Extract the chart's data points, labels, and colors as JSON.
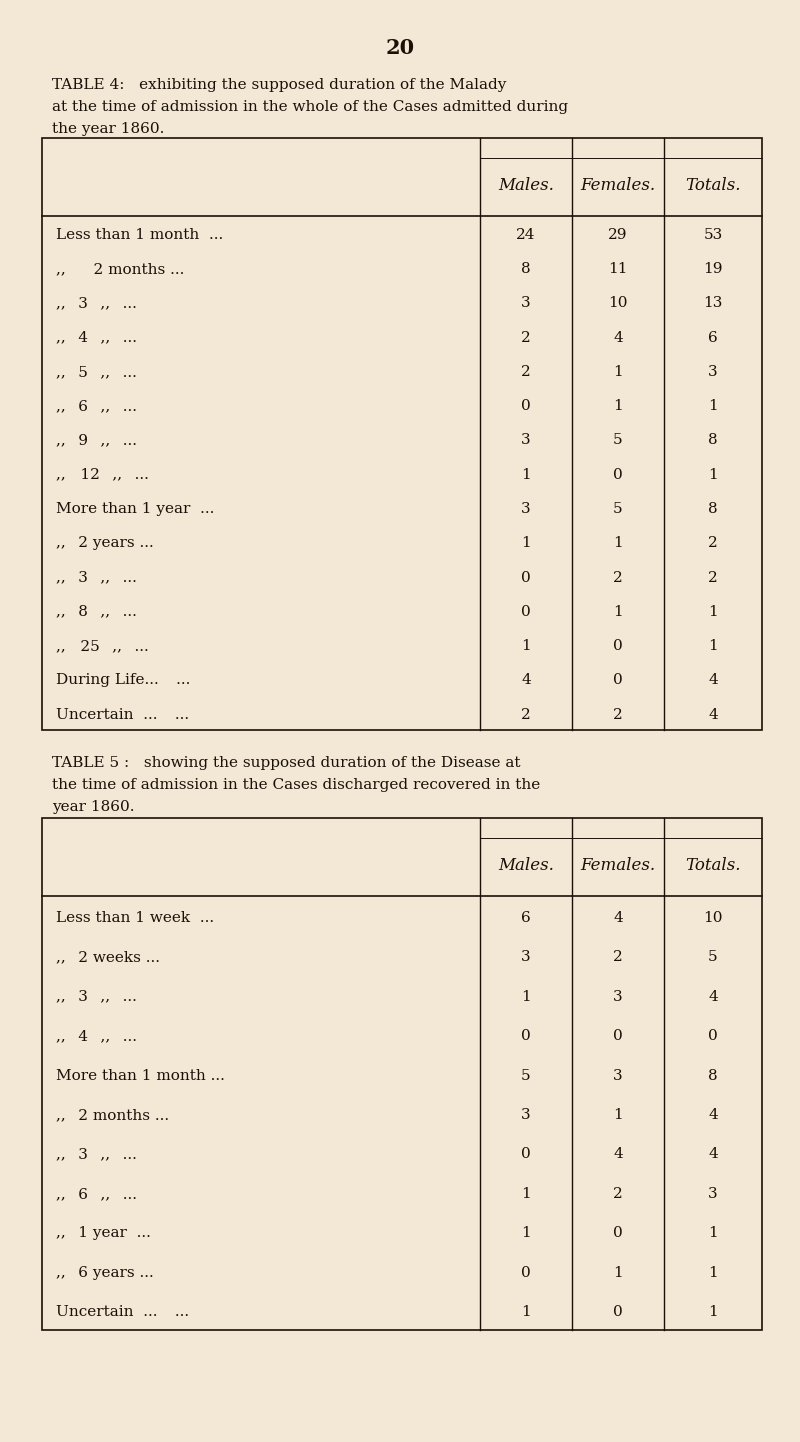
{
  "page_number": "20",
  "bg_color": "#f2e8d5",
  "text_color": "#1a1008",
  "table4_title_line1": "TABLE 4:   exhibiting the supposed duration of the Malady",
  "table4_title_line2": "at the time of admission in the whole of the Cases admitted during",
  "table4_title_line3": "the year 1860.",
  "table4_col_headers": [
    "Males.",
    "Females.",
    "Totals."
  ],
  "table4_rows": [
    [
      "Less than 1 month  ...",
      "24",
      "29",
      "53"
    ],
    [
      ",,    2 months ...",
      "8",
      "11",
      "19"
    ],
    [
      ",,  3  ,,  ...",
      "3",
      "10",
      "13"
    ],
    [
      ",,  4  ,,  ...",
      "2",
      "4",
      "6"
    ],
    [
      ",,  5  ,,  ...",
      "2",
      "1",
      "3"
    ],
    [
      ",,  6  ,,  ...",
      "0",
      "1",
      "1"
    ],
    [
      ",,  9  ,,  ...",
      "3",
      "5",
      "8"
    ],
    [
      ",,   12  ,,  ...",
      "1",
      "0",
      "1"
    ],
    [
      "More than 1 year  ...",
      "3",
      "5",
      "8"
    ],
    [
      ",,  2 years ...",
      "1",
      "1",
      "2"
    ],
    [
      ",,  3  ,,  ...",
      "0",
      "2",
      "2"
    ],
    [
      ",,  8  ,,  ...",
      "0",
      "1",
      "1"
    ],
    [
      ",,   25  ,,  ...",
      "1",
      "0",
      "1"
    ],
    [
      "During Life...   ...",
      "4",
      "0",
      "4"
    ],
    [
      "Uncertain  ...   ...",
      "2",
      "2",
      "4"
    ]
  ],
  "table5_title_line1": "TABLE 5 :   showing the supposed duration of the Disease at",
  "table5_title_line2": "the time of admission in the Cases discharged recovered in the",
  "table5_title_line3": "year 1860.",
  "table5_col_headers": [
    "Males.",
    "Females.",
    "Totals."
  ],
  "table5_rows": [
    [
      "Less than 1 week  ...",
      "6",
      "4",
      "10"
    ],
    [
      ",,  2 weeks ...",
      "3",
      "2",
      "5"
    ],
    [
      ",,  3  ,,  ...",
      "1",
      "3",
      "4"
    ],
    [
      ",,  4  ,,  ...",
      "0",
      "0",
      "0"
    ],
    [
      "More than 1 month ...",
      "5",
      "3",
      "8"
    ],
    [
      ",,  2 months ...",
      "3",
      "1",
      "4"
    ],
    [
      ",,  3  ,,  ...",
      "0",
      "4",
      "4"
    ],
    [
      ",,  6  ,,  ...",
      "1",
      "2",
      "3"
    ],
    [
      ",,  1 year  ...",
      "1",
      "0",
      "1"
    ],
    [
      ",,  6 years ...",
      "0",
      "1",
      "1"
    ],
    [
      "Uncertain  ...   ...",
      "1",
      "0",
      "1"
    ]
  ]
}
